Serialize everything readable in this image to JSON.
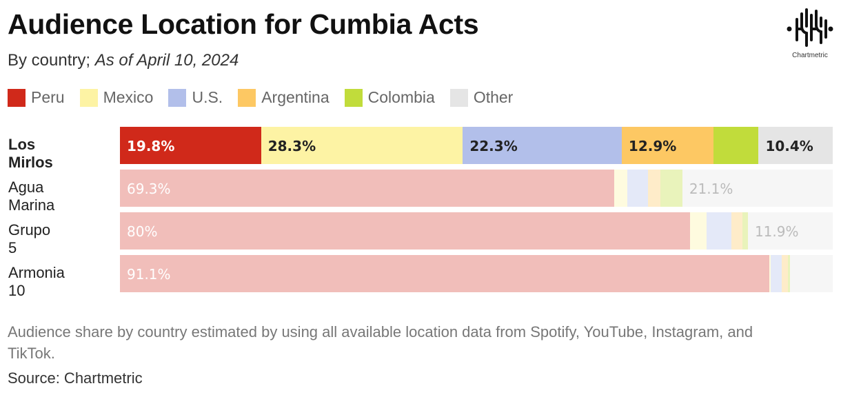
{
  "title": "Audience Location for Cumbia Acts",
  "subtitle_plain": "By country; ",
  "subtitle_italic": "As of April 10, 2024",
  "logo_text": "Chartmetric",
  "note": "Audience share by country estimated by using all available location data from Spotify, YouTube, Instagram, and TikTok.",
  "source": "Source: Chartmetric",
  "chart_data": {
    "type": "bar",
    "orientation": "horizontal-stacked-100",
    "categories": [
      "Los Mirlos",
      "Agua Marina",
      "Grupo 5",
      "Armonia 10"
    ],
    "highlighted": "Los Mirlos",
    "legend_position": "top",
    "series": [
      {
        "name": "Peru",
        "color": "#d0291a",
        "values": [
          19.8,
          69.3,
          80,
          91.1
        ],
        "labels": [
          "19.8%",
          "69.3%",
          "80%",
          "91.1%"
        ]
      },
      {
        "name": "Mexico",
        "color": "#fdf3a4",
        "values": [
          28.3,
          1.9,
          2.3,
          0.2
        ],
        "labels": [
          "28.3%",
          "",
          "",
          ""
        ]
      },
      {
        "name": "U.S.",
        "color": "#b2bfea",
        "values": [
          22.3,
          2.9,
          3.5,
          1.5
        ],
        "labels": [
          "22.3%",
          "",
          "",
          ""
        ]
      },
      {
        "name": "Argentina",
        "color": "#fdc863",
        "values": [
          12.9,
          1.7,
          1.5,
          0.9
        ],
        "labels": [
          "12.9%",
          "",
          "",
          ""
        ]
      },
      {
        "name": "Colombia",
        "color": "#c1dc3b",
        "values": [
          6.3,
          3.1,
          0.8,
          0.3
        ],
        "labels": [
          "",
          "",
          "",
          ""
        ]
      },
      {
        "name": "Other",
        "color": "#e5e5e5",
        "values": [
          10.4,
          21.1,
          11.9,
          6.0
        ],
        "labels": [
          "10.4%",
          "21.1%",
          "11.9%",
          ""
        ]
      }
    ]
  }
}
